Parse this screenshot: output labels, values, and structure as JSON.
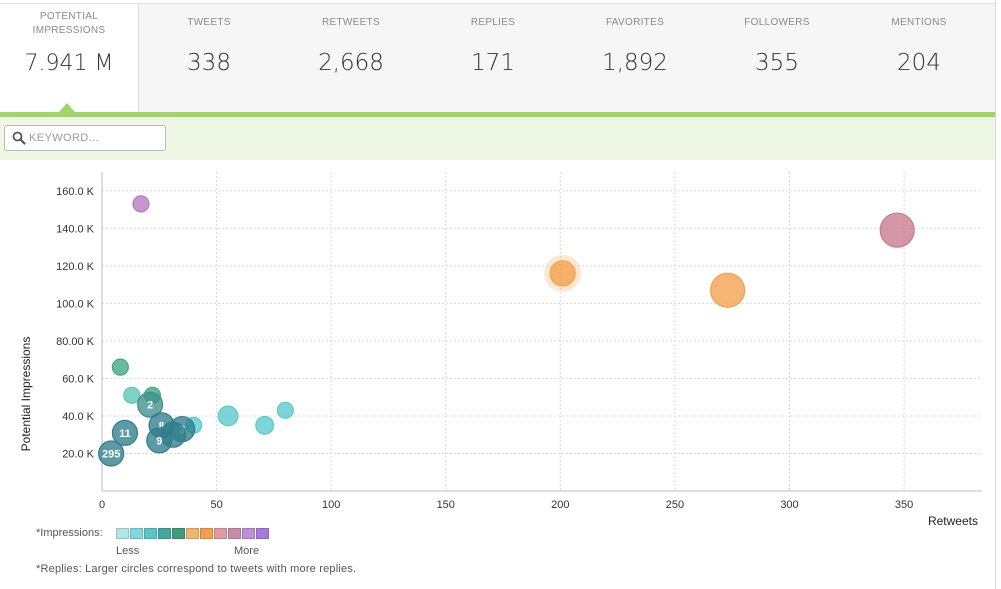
{
  "stats": [
    {
      "label": "POTENTIAL IMPRESSIONS",
      "value": "7.941 M"
    },
    {
      "label": "TWEETS",
      "value": "338"
    },
    {
      "label": "RETWEETS",
      "value": "2,668"
    },
    {
      "label": "REPLIES",
      "value": "171"
    },
    {
      "label": "FAVORITES",
      "value": "1,892"
    },
    {
      "label": "FOLLOWERS",
      "value": "355"
    },
    {
      "label": "MENTIONS",
      "value": "204"
    }
  ],
  "search": {
    "placeholder": "KEYWORD..."
  },
  "colors": {
    "accent_green": "#9fd466",
    "toolbar_bg": "#eef8e4"
  },
  "legend": {
    "title": "*Impressions:",
    "less": "Less",
    "more": "More",
    "swatches": [
      "#aee6ec",
      "#7fd8dd",
      "#58c6c8",
      "#3fa9a0",
      "#3f9e7a",
      "#f3b56a",
      "#f3a04a",
      "#e29aa3",
      "#c98ca8",
      "#bf8fd6",
      "#a779d8"
    ]
  },
  "note": "*Replies: Larger circles correspond to tweets with more replies.",
  "chart_data": {
    "type": "scatter",
    "xlabel": "Retweets",
    "ylabel": "Potential Impressions",
    "xlim": [
      0,
      384
    ],
    "ylim": [
      0,
      170000
    ],
    "xticks": [
      0,
      50,
      100,
      150,
      200,
      250,
      300,
      350
    ],
    "yticks": [
      20000,
      40000,
      60000,
      80000,
      100000,
      120000,
      140000,
      160000
    ],
    "ytick_labels": [
      "20.0 K",
      "40.0 K",
      "60.0 K",
      "80.00 K",
      "100.0 K",
      "120.0 K",
      "140.0 K",
      "160.0 K"
    ],
    "grid": true,
    "points": [
      {
        "x": 17,
        "y": 153000,
        "color": "#b879c2",
        "replies": 1,
        "label": ""
      },
      {
        "x": 347,
        "y": 139000,
        "color": "#c9798c",
        "replies": 3,
        "label": ""
      },
      {
        "x": 201,
        "y": 116000,
        "color": "#f3a04a",
        "replies": 2,
        "label": "",
        "highlight": true
      },
      {
        "x": 273,
        "y": 107000,
        "color": "#f3a04a",
        "replies": 3,
        "label": ""
      },
      {
        "x": 8,
        "y": 66000,
        "color": "#3ea882",
        "replies": 1,
        "label": ""
      },
      {
        "x": 13,
        "y": 51000,
        "color": "#58c6b4",
        "replies": 1,
        "label": ""
      },
      {
        "x": 22,
        "y": 51000,
        "color": "#3ea882",
        "replies": 1,
        "label": ""
      },
      {
        "x": 21,
        "y": 46000,
        "color": "#3f8f8a",
        "replies": 2,
        "label": "2"
      },
      {
        "x": 80,
        "y": 43000,
        "color": "#58c9cc",
        "replies": 1,
        "label": ""
      },
      {
        "x": 55,
        "y": 40000,
        "color": "#58c9cc",
        "replies": 1.4,
        "label": ""
      },
      {
        "x": 71,
        "y": 35000,
        "color": "#58c9cc",
        "replies": 1.2,
        "label": ""
      },
      {
        "x": 40,
        "y": 35000,
        "color": "#58c9cc",
        "replies": 1,
        "label": ""
      },
      {
        "x": 26,
        "y": 35000,
        "color": "#2f7d8c",
        "replies": 2,
        "label": "8"
      },
      {
        "x": 35,
        "y": 33000,
        "color": "#2f7d8c",
        "replies": 2,
        "label": "3"
      },
      {
        "x": 31,
        "y": 30000,
        "color": "#2f7d8c",
        "replies": 2,
        "label": ""
      },
      {
        "x": 10,
        "y": 31000,
        "color": "#2f7d8c",
        "replies": 2,
        "label": "11"
      },
      {
        "x": 25,
        "y": 27000,
        "color": "#2f7d8c",
        "replies": 2,
        "label": "9"
      },
      {
        "x": 4,
        "y": 20000,
        "color": "#2f7d8c",
        "replies": 2,
        "label": "295"
      }
    ]
  }
}
